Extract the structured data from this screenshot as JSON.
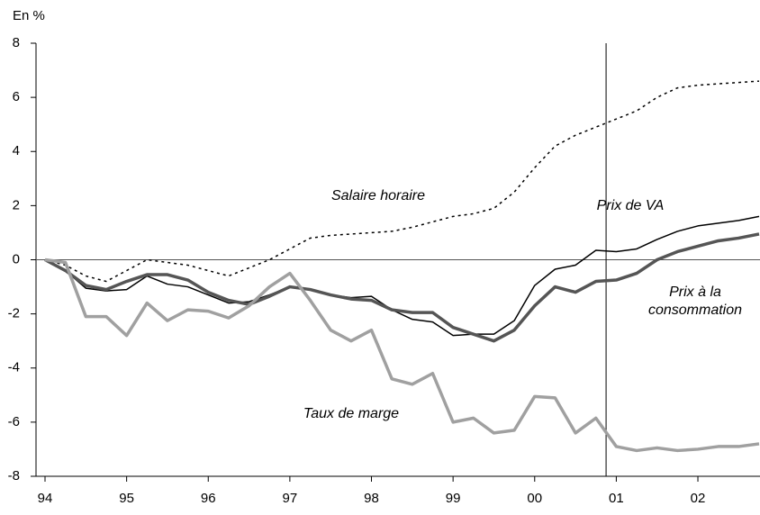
{
  "chart_data": {
    "type": "line",
    "y_label": "En %",
    "categories": [
      "94",
      null,
      null,
      null,
      "95",
      null,
      null,
      null,
      "96",
      null,
      null,
      null,
      "97",
      null,
      null,
      null,
      "98",
      null,
      null,
      null,
      "99",
      null,
      null,
      null,
      "00",
      null,
      null,
      null,
      "01",
      null,
      null,
      null,
      "02",
      null,
      null,
      null
    ],
    "series": [
      {
        "name": "Salaire horaire",
        "color": "#000000",
        "line_style": "dotted",
        "width": 1.5,
        "values": [
          0,
          -0.2,
          -0.6,
          -0.8,
          -0.4,
          0,
          -0.1,
          -0.2,
          -0.4,
          -0.6,
          -0.3,
          0,
          0.4,
          0.8,
          0.9,
          0.95,
          1.0,
          1.05,
          1.2,
          1.4,
          1.6,
          1.7,
          1.9,
          2.5,
          3.4,
          4.2,
          4.6,
          4.9,
          5.2,
          5.5,
          6.0,
          6.35,
          6.45,
          6.5,
          6.55,
          6.6
        ]
      },
      {
        "name": "Prix de VA",
        "color": "#000000",
        "line_style": "solid",
        "width": 1.5,
        "values": [
          0,
          -0.4,
          -1.05,
          -1.15,
          -1.1,
          -0.6,
          -0.9,
          -1.0,
          -1.3,
          -1.6,
          -1.55,
          -1.3,
          -1.0,
          -1.1,
          -1.3,
          -1.4,
          -1.35,
          -1.85,
          -2.2,
          -2.3,
          -2.8,
          -2.75,
          -2.75,
          -2.25,
          -0.95,
          -0.35,
          -0.2,
          0.35,
          0.3,
          0.4,
          0.75,
          1.05,
          1.25,
          1.35,
          1.45,
          1.6
        ]
      },
      {
        "name": "Prix à la consommation",
        "color": "#555555",
        "line_style": "solid",
        "width": 3.5,
        "values": [
          0,
          -0.4,
          -0.95,
          -1.1,
          -0.8,
          -0.55,
          -0.55,
          -0.75,
          -1.2,
          -1.5,
          -1.65,
          -1.35,
          -1.0,
          -1.1,
          -1.3,
          -1.45,
          -1.5,
          -1.85,
          -1.95,
          -1.95,
          -2.5,
          -2.75,
          -3.0,
          -2.6,
          -1.7,
          -1.0,
          -1.2,
          -0.8,
          -0.75,
          -0.5,
          0.0,
          0.3,
          0.5,
          0.7,
          0.8,
          0.95
        ]
      },
      {
        "name": "Taux de marge",
        "color": "#a0a0a0",
        "line_style": "solid",
        "width": 3.5,
        "values": [
          0,
          -0.1,
          -2.1,
          -2.1,
          -2.8,
          -1.6,
          -2.25,
          -1.85,
          -1.9,
          -2.15,
          -1.7,
          -1.0,
          -0.5,
          -1.5,
          -2.6,
          -3.0,
          -2.6,
          -4.4,
          -4.6,
          -4.2,
          -6.0,
          -5.85,
          -6.4,
          -6.3,
          -5.05,
          -5.1,
          -6.4,
          -5.85,
          -6.9,
          -7.05,
          -6.95,
          -7.05,
          -7.0,
          -6.9,
          -6.9,
          -6.8
        ]
      }
    ],
    "ylim": [
      -8,
      8
    ],
    "yticks": [
      -8,
      -6,
      -4,
      -2,
      0,
      2,
      4,
      6,
      8
    ]
  }
}
